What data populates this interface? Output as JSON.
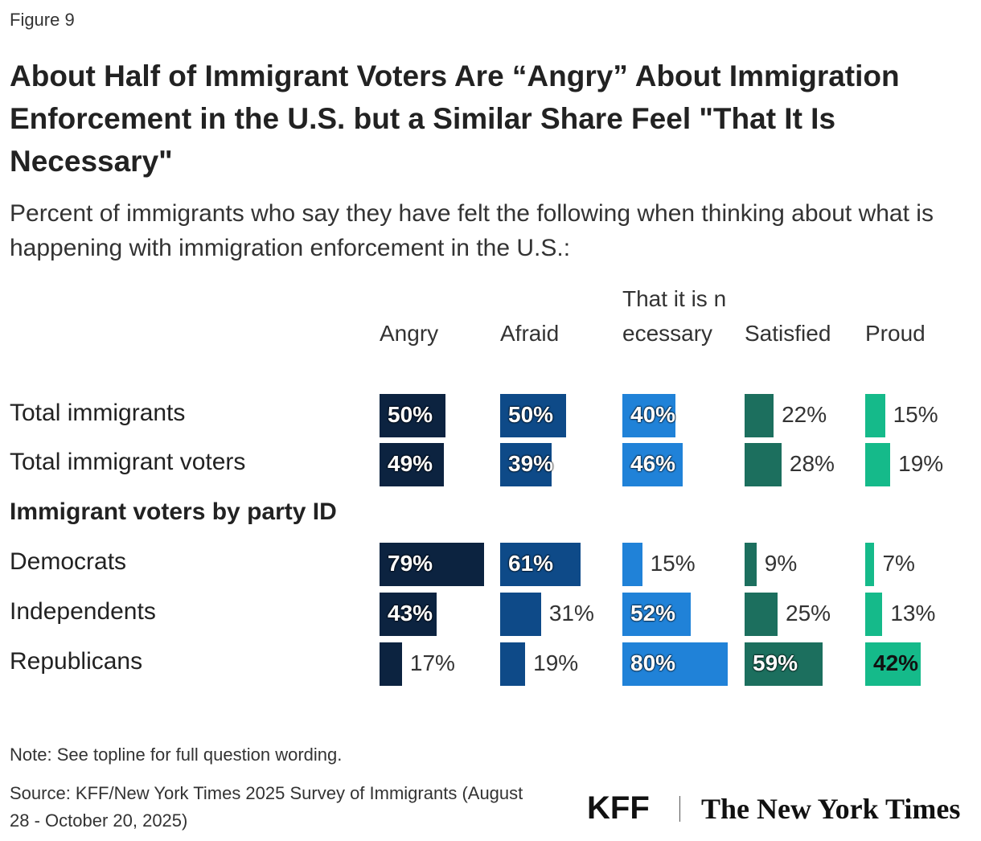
{
  "figure_label": "Figure 9",
  "chart_data": {
    "type": "bar",
    "orientation": "horizontal",
    "title": "About Half of Immigrant Voters Are “Angry” About Immigration Enforcement in the U.S. but a Similar Share Feel \"That It Is Necessary\"",
    "subtitle": "Percent of immigrants who say they have felt the following when thinking about what is happening with immigration enforcement in the U.S.:",
    "categories": [
      "Total immigrants",
      "Total immigrant voters",
      "Immigrant voters by party ID",
      "Democrats",
      "Independents",
      "Republicans"
    ],
    "xlim": [
      0,
      100
    ],
    "series": [
      {
        "name": "Angry",
        "color": "#0c2340",
        "values": [
          50,
          49,
          null,
          79,
          43,
          17
        ],
        "value_labels": [
          "50%",
          "49%",
          null,
          "79%",
          "43%",
          "17%"
        ]
      },
      {
        "name": "Afraid",
        "color": "#0e4a88",
        "values": [
          50,
          39,
          null,
          61,
          31,
          19
        ],
        "value_labels": [
          "50%",
          "39%",
          null,
          "61%",
          "31%",
          "19%"
        ]
      },
      {
        "name": "That it is necessary",
        "color": "#2082d8",
        "values": [
          40,
          46,
          null,
          15,
          52,
          80
        ],
        "value_labels": [
          "40%",
          "46%",
          null,
          "15%",
          "52%",
          "80%"
        ]
      },
      {
        "name": "Satisfied",
        "color": "#1c6f5e",
        "values": [
          22,
          28,
          null,
          9,
          25,
          59
        ],
        "value_labels": [
          "22%",
          "28%",
          null,
          "9%",
          "25%",
          "59%"
        ]
      },
      {
        "name": "Proud",
        "color": "#15ba8a",
        "values": [
          15,
          19,
          null,
          7,
          13,
          42
        ],
        "value_labels": [
          "15%",
          "19%",
          null,
          "7%",
          "13%",
          "42%"
        ]
      }
    ],
    "note": "Note: See topline for full question wording.",
    "source": "Source: KFF/New York Times 2025 Survey of Immigrants (August 28 - October 20, 2025)"
  },
  "logos": [
    "KFF",
    "The New York Times"
  ]
}
